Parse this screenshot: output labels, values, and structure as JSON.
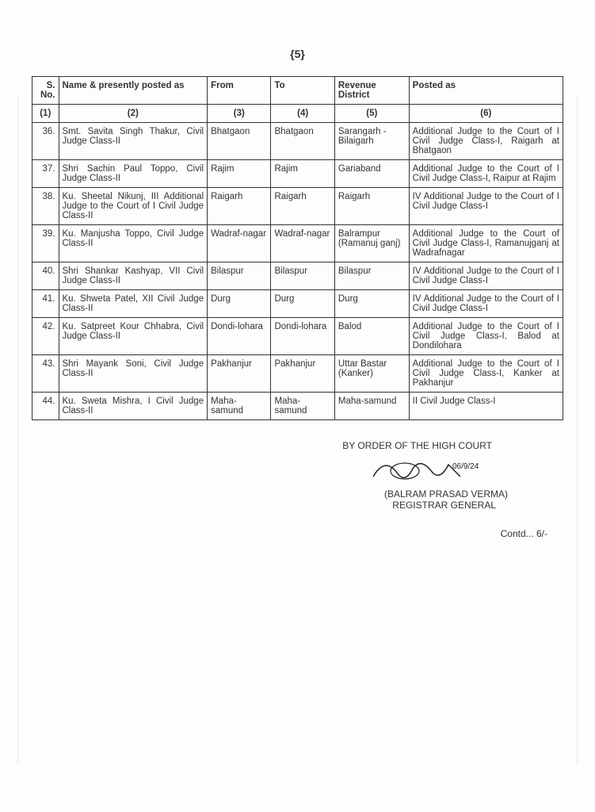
{
  "page_number": "{5}",
  "colors": {
    "text": "#333333",
    "border": "#333333",
    "background": "#fdfdfd"
  },
  "typography": {
    "body_fontsize": 11.5,
    "header_fontsize": 14,
    "footer_fontsize": 12,
    "font_family": "Arial"
  },
  "headers": {
    "sno": "S. No.",
    "name": "Name & presently posted as",
    "from": "From",
    "to": "To",
    "revenue": "Revenue District",
    "posted": "Posted as"
  },
  "subheaders": {
    "c1": "(1)",
    "c2": "(2)",
    "c3": "(3)",
    "c4": "(4)",
    "c5": "(5)",
    "c6": "(6)"
  },
  "rows": [
    {
      "sno": "36.",
      "name": "Smt. Savita Singh Thakur, Civil Judge Class-II",
      "from": "Bhatgaon",
      "to": "Bhatgaon",
      "revenue": "Sarangarh -Bilaigarh",
      "posted": "Additional Judge to the Court of I Civil Judge Class-I, Raigarh at Bhatgaon"
    },
    {
      "sno": "37.",
      "name": "Shri Sachin Paul Toppo, Civil Judge Class-II",
      "from": "Rajim",
      "to": "Rajim",
      "revenue": "Gariaband",
      "posted": "Additional Judge to the Court of I Civil Judge Class-I, Raipur at Rajim"
    },
    {
      "sno": "38.",
      "name": "Ku. Sheetal Nikunj, III Additional Judge to the Court of I Civil Judge Class-II",
      "from": "Raigarh",
      "to": "Raigarh",
      "revenue": "Raigarh",
      "posted": "IV Additional Judge to the Court of I Civil Judge Class-I"
    },
    {
      "sno": "39.",
      "name": "Ku. Manjusha Toppo, Civil Judge Class-II",
      "from": "Wadraf-nagar",
      "to": "Wadraf-nagar",
      "revenue": "Balrampur (Ramanuj ganj)",
      "posted": "Additional Judge to the Court of Civil Judge Class-I, Ramanujganj at Wadrafnagar"
    },
    {
      "sno": "40.",
      "name": "Shri Shankar Kashyap, VII Civil Judge Class-II",
      "from": "Bilaspur",
      "to": "Bilaspur",
      "revenue": "Bilaspur",
      "posted": "IV Additional Judge to the Court of I Civil Judge Class-I"
    },
    {
      "sno": "41.",
      "name": "Ku. Shweta Patel, XII Civil Judge Class-II",
      "from": "Durg",
      "to": "Durg",
      "revenue": "Durg",
      "posted": "IV Additional Judge to the Court of I Civil Judge Class-I"
    },
    {
      "sno": "42.",
      "name": "Ku. Satpreet Kour Chhabra, Civil Judge Class-II",
      "from": "Dondi-lohara",
      "to": "Dondi-lohara",
      "revenue": "Balod",
      "posted": "Additional Judge to the Court of I Civil Judge Class-I, Balod at Dondilohara"
    },
    {
      "sno": "43.",
      "name": "Shri Mayank Soni, Civil Judge Class-II",
      "from": "Pakhanjur",
      "to": "Pakhanjur",
      "revenue": "Uttar Bastar (Kanker)",
      "posted": "Additional Judge to the Court of I Civil Judge Class-I, Kanker at Pakhanjur"
    },
    {
      "sno": "44.",
      "name": "Ku. Sweta Mishra, I Civil Judge Class-II",
      "from": "Maha-samund",
      "to": "Maha-samund",
      "revenue": "Maha-samund",
      "posted": "II Civil Judge Class-I"
    }
  ],
  "footer": {
    "order_line": "BY ORDER OF THE HIGH COURT",
    "date_scribble": "06/9/24",
    "name": "(BALRAM PRASAD VERMA)",
    "title": "REGISTRAR GENERAL",
    "contd": "Contd... 6/-"
  }
}
